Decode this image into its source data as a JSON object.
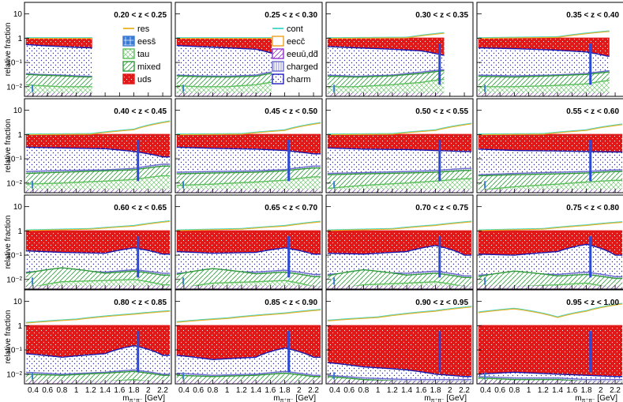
{
  "chart_data": {
    "type": "area",
    "layout": "4x4 grid of stacked-fraction histograms",
    "ylabel": "relative fraction",
    "xlabel": "m",
    "xlabel_sub": "π⁺π⁻",
    "xlabel_unit": "[GeV]",
    "xlim": [
      0.28,
      2.32
    ],
    "ylim": [
      0.004,
      30
    ],
    "yscale": "log",
    "x_ticks": [
      0.4,
      0.6,
      0.8,
      1,
      1.2,
      1.4,
      1.6,
      1.8,
      2,
      2.2
    ],
    "x_tick_labels": [
      "0.4",
      "0.6",
      "0.8",
      "1",
      "1.2",
      "1.4",
      "1.6",
      "1.8",
      "2",
      "2.2"
    ],
    "y_ticks": [
      0.01,
      0.1,
      1,
      10
    ],
    "y_tick_labels": [
      "10⁻²",
      "10⁻¹",
      "1",
      "10"
    ],
    "legend": {
      "left": [
        {
          "name": "res",
          "color": "#e8b22a"
        },
        {
          "name": "eess̄",
          "color": "#3a7bd5"
        },
        {
          "name": "tau",
          "color": "#5cc05c"
        },
        {
          "name": "mixed",
          "color": "#2e9a3a"
        },
        {
          "name": "uds",
          "color": "#e01818"
        }
      ],
      "right": [
        {
          "name": "cont",
          "color": "#3fd6c8"
        },
        {
          "name": "eecc̄",
          "color": "#f0a020"
        },
        {
          "name": "eeuū,dd̄",
          "color": "#9030d0"
        },
        {
          "name": "charged",
          "color": "#6a6acd"
        },
        {
          "name": "charm",
          "color": "#2020c0"
        }
      ]
    },
    "components_stack_order": [
      "tau",
      "mixed",
      "charged",
      "charm",
      "uds"
    ],
    "panels": [
      {
        "label": "0.20 < z < 0.25",
        "xmax": 1.23,
        "uds_top": 1.0,
        "charm_x": [
          0.3,
          0.5,
          0.8,
          1.0,
          1.2
        ],
        "charm_y": [
          0.55,
          0.5,
          0.45,
          0.42,
          0.4
        ],
        "charged_y": [
          0.035,
          0.032,
          0.03,
          0.028,
          0.027
        ],
        "mixed_y": [
          0.032,
          0.03,
          0.028,
          0.026,
          0.025
        ],
        "tau_y": [
          0.012,
          0.011,
          0.01,
          0.01,
          0.01
        ],
        "res_x": [
          0.3,
          1.23
        ],
        "res_y": [
          1.0,
          1.0
        ]
      },
      {
        "label": "0.25 < z < 0.30",
        "xmax": 1.62,
        "uds_top": 1.0,
        "charm_x": [
          0.3,
          0.6,
          1.0,
          1.4,
          1.6
        ],
        "charm_y": [
          0.5,
          0.45,
          0.4,
          0.35,
          0.25
        ],
        "charged_y": [
          0.03,
          0.028,
          0.027,
          0.03,
          0.04
        ],
        "mixed_y": [
          0.028,
          0.026,
          0.025,
          0.027,
          0.035
        ],
        "tau_y": [
          0.011,
          0.01,
          0.01,
          0.012,
          0.015
        ],
        "res_x": [
          0.3,
          1.6
        ],
        "res_y": [
          1.0,
          1.0
        ]
      },
      {
        "label": "0.30 < z < 0.35",
        "xmax": 1.92,
        "uds_top": 1.0,
        "charm_x": [
          0.3,
          0.7,
          1.2,
          1.6,
          1.9
        ],
        "charm_y": [
          0.45,
          0.4,
          0.35,
          0.3,
          0.2
        ],
        "charged_y": [
          0.03,
          0.027,
          0.03,
          0.04,
          0.05
        ],
        "mixed_y": [
          0.027,
          0.025,
          0.028,
          0.035,
          0.045
        ],
        "tau_y": [
          0.01,
          0.01,
          0.012,
          0.015,
          0.02
        ],
        "res_x": [
          0.3,
          1.4,
          1.9
        ],
        "res_y": [
          1.0,
          1.05,
          1.6
        ]
      },
      {
        "label": "0.35 < z < 0.40",
        "xmax": 2.12,
        "uds_top": 1.0,
        "charm_x": [
          0.3,
          0.8,
          1.3,
          1.8,
          2.1
        ],
        "charm_y": [
          0.4,
          0.37,
          0.33,
          0.27,
          0.18
        ],
        "charged_y": [
          0.03,
          0.028,
          0.03,
          0.035,
          0.045
        ],
        "mixed_y": [
          0.027,
          0.025,
          0.028,
          0.032,
          0.04
        ],
        "tau_y": [
          0.01,
          0.01,
          0.011,
          0.013,
          0.018
        ],
        "res_x": [
          0.3,
          1.4,
          2.1
        ],
        "res_y": [
          1.0,
          1.1,
          1.9
        ]
      },
      {
        "label": "0.40 < z < 0.45",
        "xmax": 2.3,
        "uds_top": 1.0,
        "charm_x": [
          0.3,
          0.8,
          1.4,
          1.8,
          2.2
        ],
        "charm_y": [
          0.3,
          0.28,
          0.26,
          0.2,
          0.12
        ],
        "charged_y": [
          0.03,
          0.033,
          0.035,
          0.04,
          0.06
        ],
        "mixed_y": [
          0.025,
          0.028,
          0.032,
          0.035,
          0.05
        ],
        "tau_y": [
          0.009,
          0.01,
          0.012,
          0.014,
          0.02
        ],
        "res_x": [
          0.3,
          1.2,
          1.8,
          2.3
        ],
        "res_y": [
          1.0,
          1.05,
          1.6,
          3.5
        ]
      },
      {
        "label": "0.45 < z < 0.50",
        "xmax": 2.3,
        "uds_top": 1.0,
        "charm_x": [
          0.3,
          0.8,
          1.4,
          1.8,
          2.2
        ],
        "charm_y": [
          0.3,
          0.27,
          0.25,
          0.22,
          0.16
        ],
        "charged_y": [
          0.028,
          0.03,
          0.032,
          0.036,
          0.05
        ],
        "mixed_y": [
          0.024,
          0.026,
          0.028,
          0.032,
          0.042
        ],
        "tau_y": [
          0.008,
          0.009,
          0.011,
          0.013,
          0.018
        ],
        "res_x": [
          0.3,
          1.2,
          1.8,
          2.3
        ],
        "res_y": [
          1.0,
          1.05,
          1.5,
          3.0
        ]
      },
      {
        "label": "0.50 < z < 0.55",
        "xmax": 2.3,
        "uds_top": 1.0,
        "charm_x": [
          0.3,
          0.8,
          1.4,
          1.8,
          2.2
        ],
        "charm_y": [
          0.28,
          0.25,
          0.24,
          0.22,
          0.2
        ],
        "charged_y": [
          0.025,
          0.027,
          0.03,
          0.033,
          0.04
        ],
        "mixed_y": [
          0.022,
          0.024,
          0.026,
          0.028,
          0.033
        ],
        "tau_y": [
          0.006,
          0.008,
          0.01,
          0.012,
          0.015
        ],
        "res_x": [
          0.3,
          1.2,
          1.8,
          2.3
        ],
        "res_y": [
          1.0,
          1.05,
          1.5,
          2.8
        ]
      },
      {
        "label": "0.55 < z < 0.60",
        "xmax": 2.3,
        "uds_top": 1.0,
        "charm_x": [
          0.3,
          0.8,
          1.4,
          1.8,
          2.2
        ],
        "charm_y": [
          0.25,
          0.22,
          0.21,
          0.2,
          0.19
        ],
        "charged_y": [
          0.022,
          0.025,
          0.028,
          0.03,
          0.035
        ],
        "mixed_y": [
          0.02,
          0.022,
          0.024,
          0.026,
          0.03
        ],
        "tau_y": [
          0.005,
          0.007,
          0.009,
          0.011,
          0.013
        ],
        "res_x": [
          0.3,
          1.2,
          1.8,
          2.3
        ],
        "res_y": [
          1.0,
          1.05,
          1.5,
          2.6
        ]
      },
      {
        "label": "0.60 < z < 0.65",
        "xmax": 2.3,
        "uds_top": 1.0,
        "charm_x": [
          0.3,
          0.8,
          1.4,
          1.8,
          2.2
        ],
        "charm_y": [
          0.15,
          0.13,
          0.12,
          0.2,
          0.11
        ],
        "charged_y": [
          0.02,
          0.024,
          0.02,
          0.025,
          0.018
        ],
        "mixed_y": [
          0.018,
          0.03,
          0.018,
          0.022,
          0.015
        ],
        "tau_y": [
          0.004,
          0.008,
          0.009,
          0.01,
          0.006
        ],
        "res_x": [
          0.3,
          1.2,
          1.8,
          2.3
        ],
        "res_y": [
          1.05,
          1.2,
          1.6,
          2.5
        ]
      },
      {
        "label": "0.65 < z < 0.70",
        "xmax": 2.3,
        "uds_top": 1.0,
        "charm_x": [
          0.3,
          0.8,
          1.4,
          1.8,
          2.2
        ],
        "charm_y": [
          0.14,
          0.12,
          0.13,
          0.2,
          0.11
        ],
        "charged_y": [
          0.018,
          0.022,
          0.02,
          0.024,
          0.016
        ],
        "mixed_y": [
          0.016,
          0.028,
          0.017,
          0.02,
          0.013
        ],
        "tau_y": [
          0.004,
          0.007,
          0.008,
          0.009,
          0.005
        ],
        "res_x": [
          0.3,
          1.2,
          1.8,
          2.3
        ],
        "res_y": [
          1.05,
          1.2,
          1.6,
          2.4
        ]
      },
      {
        "label": "0.70 < z < 0.75",
        "xmax": 2.3,
        "uds_top": 1.0,
        "charm_x": [
          0.3,
          0.8,
          1.4,
          1.8,
          2.2
        ],
        "charm_y": [
          0.12,
          0.11,
          0.14,
          0.25,
          0.1
        ],
        "charged_y": [
          0.016,
          0.02,
          0.018,
          0.022,
          0.014
        ],
        "mixed_y": [
          0.014,
          0.025,
          0.015,
          0.018,
          0.012
        ],
        "tau_y": [
          0.003,
          0.006,
          0.007,
          0.008,
          0.005
        ],
        "res_x": [
          0.3,
          1.2,
          1.8,
          2.3
        ],
        "res_y": [
          1.05,
          1.2,
          1.7,
          2.4
        ]
      },
      {
        "label": "0.75 < z < 0.80",
        "xmax": 2.3,
        "uds_top": 1.0,
        "charm_x": [
          0.3,
          0.8,
          1.4,
          1.8,
          2.2
        ],
        "charm_y": [
          0.11,
          0.1,
          0.14,
          0.28,
          0.1
        ],
        "charged_y": [
          0.015,
          0.018,
          0.016,
          0.02,
          0.013
        ],
        "mixed_y": [
          0.013,
          0.022,
          0.014,
          0.016,
          0.011
        ],
        "tau_y": [
          0.003,
          0.005,
          0.006,
          0.007,
          0.004
        ],
        "res_x": [
          0.3,
          1.2,
          1.8,
          2.3
        ],
        "res_y": [
          1.05,
          1.2,
          1.7,
          2.3
        ]
      },
      {
        "label": "0.80 < z < 0.85",
        "xmax": 2.3,
        "uds_top": 1.0,
        "charm_x": [
          0.3,
          0.8,
          1.4,
          1.8,
          2.2
        ],
        "charm_y": [
          0.07,
          0.05,
          0.07,
          0.15,
          0.06
        ],
        "charged_y": [
          0.012,
          0.01,
          0.012,
          0.015,
          0.01
        ],
        "mixed_y": [
          0.01,
          0.009,
          0.011,
          0.013,
          0.009
        ],
        "tau_y": [
          0.003,
          0.004,
          0.005,
          0.006,
          0.004
        ],
        "res_x": [
          0.3,
          1.0,
          1.8,
          2.3
        ],
        "res_y": [
          1.3,
          1.8,
          3.0,
          4.0
        ]
      },
      {
        "label": "0.85 < z < 0.90",
        "xmax": 2.3,
        "uds_top": 1.0,
        "charm_x": [
          0.3,
          0.8,
          1.4,
          1.8,
          2.2
        ],
        "charm_y": [
          0.06,
          0.04,
          0.05,
          0.12,
          0.05
        ],
        "charged_y": [
          0.011,
          0.009,
          0.01,
          0.013,
          0.009
        ],
        "mixed_y": [
          0.009,
          0.008,
          0.009,
          0.011,
          0.008
        ],
        "tau_y": [
          0.003,
          0.003,
          0.004,
          0.005,
          0.004
        ],
        "res_x": [
          0.3,
          1.0,
          1.8,
          2.3
        ],
        "res_y": [
          1.4,
          2.0,
          3.2,
          4.5
        ]
      },
      {
        "label": "0.90 < z < 0.95",
        "xmax": 2.3,
        "uds_top": 1.0,
        "charm_x": [
          0.3,
          0.8,
          1.4,
          1.8,
          2.2
        ],
        "charm_y": [
          0.03,
          0.02,
          0.015,
          0.01,
          0.008
        ],
        "charged_y": [
          0.009,
          0.007,
          0.006,
          0.006,
          0.006
        ],
        "mixed_y": [
          0.008,
          0.006,
          0.005,
          0.005,
          0.005
        ],
        "tau_y": [
          0.003,
          0.003,
          0.003,
          0.003,
          0.003
        ],
        "res_x": [
          0.3,
          1.0,
          1.8,
          2.3
        ],
        "res_y": [
          1.6,
          2.2,
          4.0,
          6.0
        ]
      },
      {
        "label": "0.95 < z < 1.00",
        "xmax": 2.3,
        "uds_top": 1.0,
        "charm_x": [
          0.3,
          0.8,
          1.4,
          1.8,
          2.2
        ],
        "charm_y": [
          0.01,
          0.012,
          0.01,
          0.009,
          0.008
        ],
        "charged_y": [
          0.008,
          0.007,
          0.007,
          0.006,
          0.006
        ],
        "mixed_y": [
          0.007,
          0.006,
          0.006,
          0.005,
          0.005
        ],
        "tau_y": [
          0.003,
          0.003,
          0.003,
          0.003,
          0.003
        ],
        "res_x": [
          0.3,
          0.8,
          1.4,
          1.8,
          2.3
        ],
        "res_y": [
          3.5,
          5.0,
          2.2,
          4.0,
          8.0
        ]
      }
    ]
  }
}
